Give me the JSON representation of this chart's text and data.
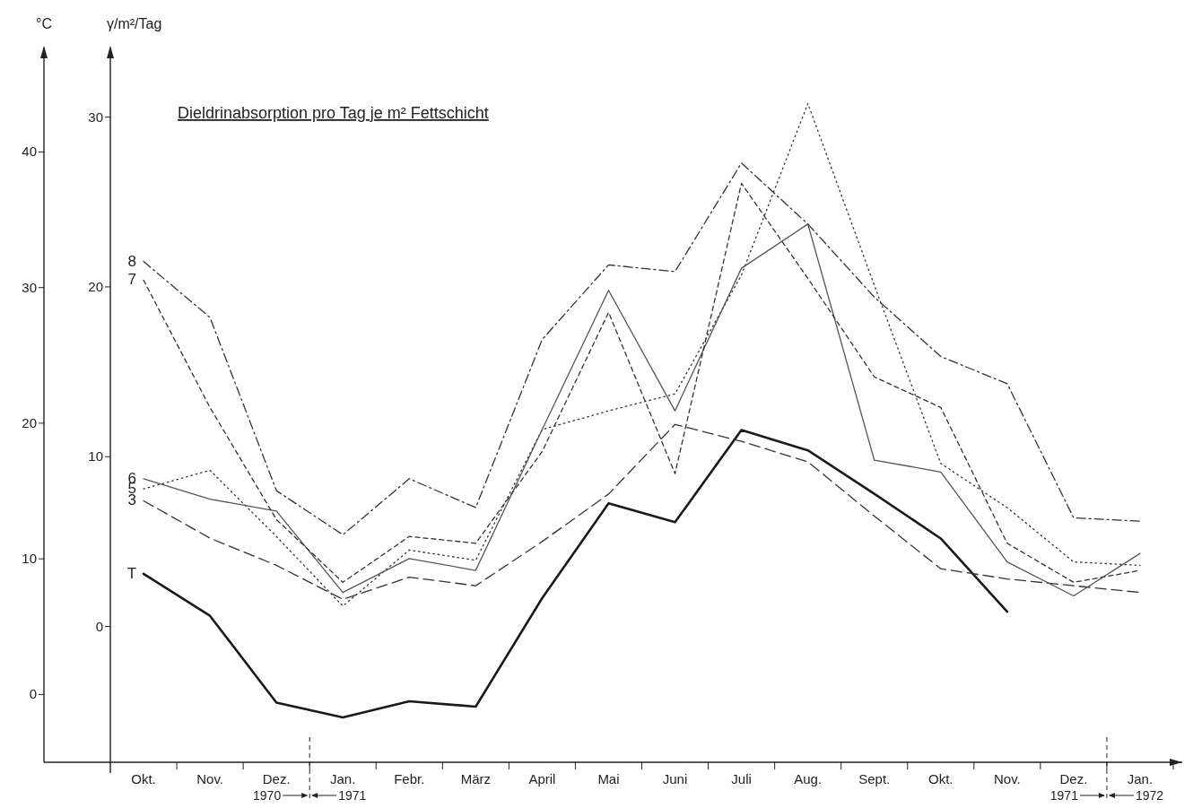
{
  "chart_data": {
    "type": "line",
    "title": "Dieldrinabsorption pro Tag je m² Fettschicht",
    "ylabel": "°C",
    "y2label": "γ/m²/Tag",
    "categories": [
      "Okt.",
      "Nov.",
      "Dez.",
      "Jan.",
      "Febr.",
      "März",
      "April",
      "Mai",
      "Juni",
      "Juli",
      "Aug.",
      "Sept.",
      "Okt.",
      "Nov.",
      "Dez.",
      "Jan."
    ],
    "series": [
      {
        "name": "T",
        "color": "#1a1a1a",
        "axis": "y",
        "line_style": "solid",
        "values": [
          8.9,
          5.8,
          -0.6,
          -1.7,
          -0.5,
          -0.9,
          7.1,
          14.1,
          12.7,
          19.5,
          18.0,
          14.8,
          11.5,
          6.1,
          null,
          null
        ]
      },
      {
        "name": "3",
        "color": "#333333",
        "axis": "y2",
        "line_style": "dashed",
        "values": [
          7.4,
          5.2,
          3.6,
          1.6,
          2.9,
          2.4,
          5.0,
          7.8,
          11.9,
          10.9,
          9.7,
          6.5,
          3.4,
          2.8,
          2.4,
          2.0
        ]
      },
      {
        "name": "5",
        "color": "#333333",
        "axis": "y2",
        "line_style": "dotted",
        "values": [
          8.1,
          9.2,
          5.3,
          1.2,
          4.5,
          3.9,
          11.6,
          12.7,
          13.7,
          20.7,
          30.8,
          20.1,
          9.6,
          7.0,
          3.8,
          3.6
        ]
      },
      {
        "name": "6",
        "color": "#555555",
        "axis": "y2",
        "line_style": "solid",
        "values": [
          8.7,
          7.5,
          6.8,
          2.0,
          4.0,
          3.3,
          11.6,
          19.8,
          12.7,
          21.1,
          23.7,
          9.8,
          9.1,
          3.8,
          1.8,
          4.3
        ]
      },
      {
        "name": "7",
        "color": "#333333",
        "axis": "y2",
        "line_style": "shortdash",
        "values": [
          20.4,
          12.9,
          6.3,
          2.6,
          5.3,
          4.9,
          10.3,
          18.5,
          9.0,
          26.1,
          20.5,
          14.7,
          12.9,
          4.9,
          2.6,
          3.3
        ]
      },
      {
        "name": "8",
        "color": "#333333",
        "axis": "y2",
        "line_style": "dashdot",
        "values": [
          21.5,
          18.2,
          8.0,
          5.4,
          8.7,
          7.0,
          16.9,
          21.3,
          20.9,
          27.3,
          23.7,
          19.4,
          15.9,
          14.3,
          6.4,
          6.2
        ]
      }
    ],
    "ylim": [
      -5,
      47.7
    ],
    "yticks": [
      0,
      10,
      20,
      30,
      40
    ],
    "y2lim": [
      -8,
      34.1
    ],
    "y2ticks": [
      0,
      10,
      20,
      30
    ],
    "annotations": [
      "1970",
      "1971",
      "1971",
      "1972"
    ],
    "grid": false,
    "legend": false,
    "marker": "none"
  }
}
